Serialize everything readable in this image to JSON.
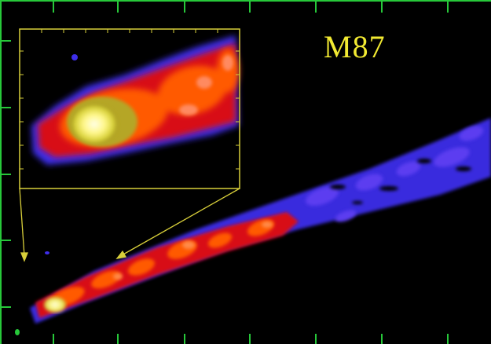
{
  "image": {
    "object_label": "M87",
    "colors": {
      "frame": "#27c83a",
      "inset_border": "#d8cf3a",
      "label": "#f2ea32",
      "background": "#000000",
      "emission_high": "#fff9a0",
      "emission_mid": "#ff5a00",
      "emission_low": "#d80a18",
      "emission_faint": "#3e2eea"
    }
  }
}
